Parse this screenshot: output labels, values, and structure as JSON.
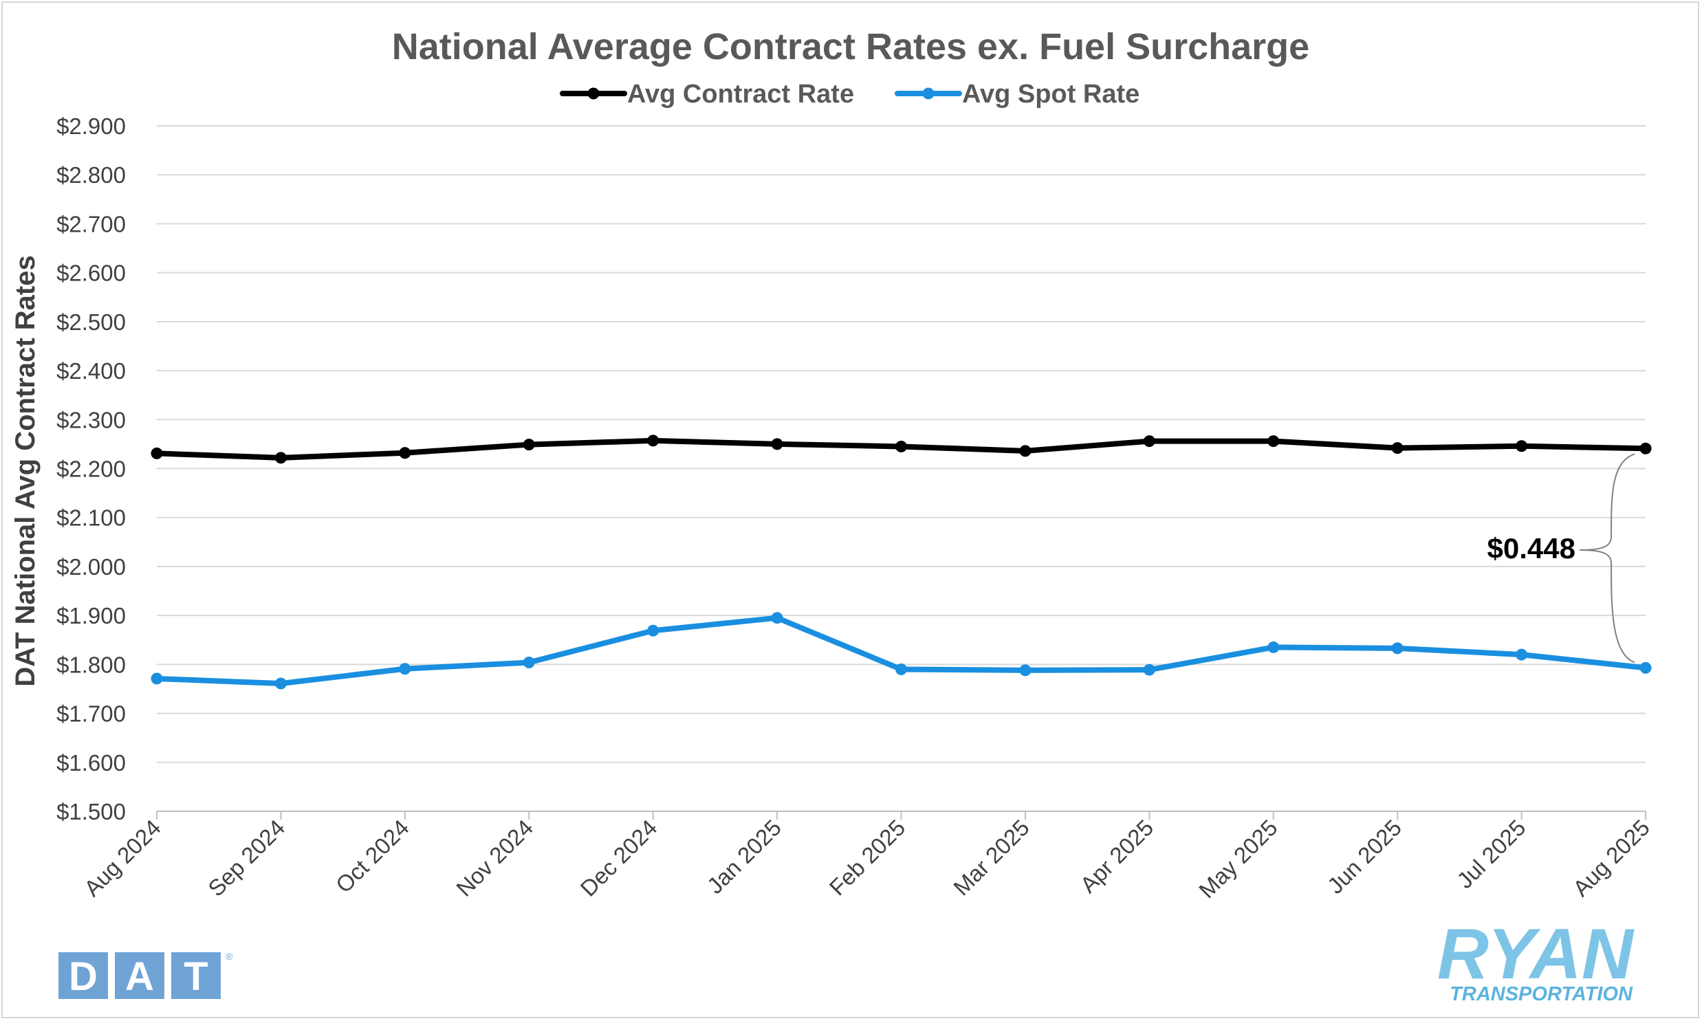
{
  "chart_data": {
    "type": "line",
    "title": "National Average Contract Rates ex. Fuel Surcharge",
    "xlabel": "",
    "ylabel": "DAT National Avg Contract Rates",
    "ylim": [
      1.5,
      2.9
    ],
    "ytick_step": 0.1,
    "ytick_labels": [
      "$1.500",
      "$1.600",
      "$1.700",
      "$1.800",
      "$1.900",
      "$2.000",
      "$2.100",
      "$2.200",
      "$2.300",
      "$2.400",
      "$2.500",
      "$2.600",
      "$2.700",
      "$2.800",
      "$2.900"
    ],
    "grid": true,
    "legend_position": "top-center",
    "categories": [
      "Aug 2024",
      "Sep 2024",
      "Oct 2024",
      "Nov 2024",
      "Dec 2024",
      "Jan 2025",
      "Feb 2025",
      "Mar 2025",
      "Apr 2025",
      "May 2025",
      "Jun 2025",
      "Jul 2025",
      "Aug 2025"
    ],
    "series": [
      {
        "name": "Avg Contract Rate",
        "color": "#000000",
        "values": [
          2.231,
          2.222,
          2.232,
          2.249,
          2.257,
          2.25,
          2.245,
          2.236,
          2.256,
          2.256,
          2.242,
          2.246,
          2.241
        ]
      },
      {
        "name": "Avg Spot Rate",
        "color": "#1a8fe0",
        "values": [
          1.771,
          1.761,
          1.791,
          1.804,
          1.869,
          1.895,
          1.79,
          1.788,
          1.789,
          1.835,
          1.833,
          1.82,
          1.793
        ]
      }
    ],
    "annotation": {
      "text": "$0.448",
      "category": "Aug 2025"
    }
  },
  "logos": {
    "dat": {
      "text": "DAT",
      "color": "#6fa3d6"
    },
    "ryan": {
      "text": "RYAN",
      "subtext": "TRANSPORTATION",
      "color": "#7ec4e6"
    }
  }
}
